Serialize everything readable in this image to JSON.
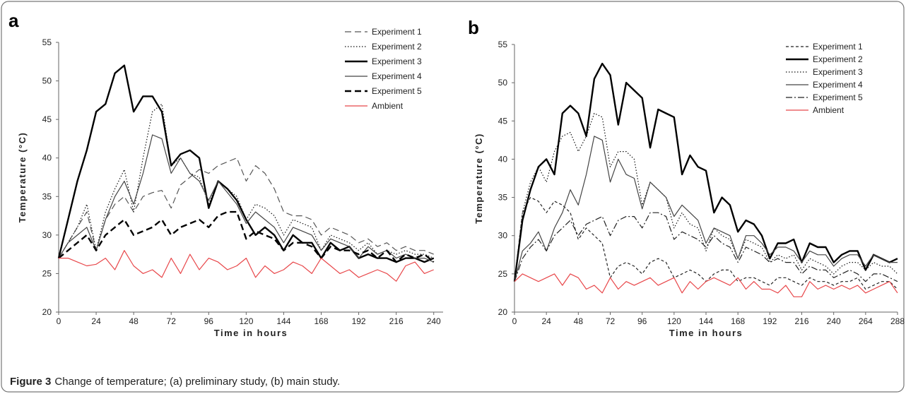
{
  "caption": {
    "label": "Figure 3",
    "text": "Change of temperature; (a) preliminary study, (b) main study."
  },
  "chart_data": [
    {
      "type": "line",
      "panel": "a",
      "xlabel": "Time in hours",
      "ylabel": "Temperature (°C)",
      "xlim": [
        0,
        246
      ],
      "ylim": [
        20,
        55
      ],
      "xticks": [
        0,
        24,
        48,
        72,
        96,
        120,
        144,
        168,
        192,
        216,
        240
      ],
      "yticks": [
        20,
        25,
        30,
        35,
        40,
        45,
        50,
        55
      ],
      "legend": "upper right",
      "x": [
        0,
        6,
        12,
        18,
        24,
        30,
        36,
        42,
        48,
        54,
        60,
        66,
        72,
        78,
        84,
        90,
        96,
        102,
        108,
        114,
        120,
        126,
        132,
        138,
        144,
        150,
        156,
        162,
        168,
        174,
        180,
        186,
        192,
        198,
        204,
        210,
        216,
        222,
        228,
        234,
        240
      ],
      "series": [
        {
          "name": "Experiment 1",
          "color": "#555555",
          "line_style": "dashed",
          "weight": "normal",
          "values": [
            27,
            29,
            31,
            33,
            28,
            32,
            34,
            35,
            33,
            35,
            35.5,
            35.8,
            33.5,
            36.5,
            37.5,
            38.5,
            38,
            39,
            39.5,
            40,
            37,
            39,
            38,
            36,
            33,
            32.5,
            32.5,
            32,
            30,
            31,
            30.5,
            30,
            29,
            29.5,
            28.5,
            29,
            28,
            28.5,
            28,
            28,
            27.5
          ]
        },
        {
          "name": "Experiment 2",
          "color": "#111111",
          "line_style": "dotted",
          "weight": "normal",
          "values": [
            27,
            29,
            31,
            34,
            28,
            33,
            36,
            38.5,
            33,
            40,
            46,
            47,
            39,
            40,
            38,
            37.5,
            34,
            37,
            36,
            35,
            32,
            34,
            33.5,
            32.5,
            30,
            32,
            31.5,
            31,
            28,
            30,
            29.5,
            29,
            28,
            29,
            27.5,
            28,
            27.5,
            28,
            27.5,
            27.5,
            27
          ]
        },
        {
          "name": "Experiment 3",
          "color": "#000000",
          "line_style": "solid",
          "weight": "bold",
          "values": [
            27,
            32,
            37,
            41,
            46,
            47,
            51,
            52,
            46,
            48,
            48,
            46,
            39,
            40.5,
            41,
            40,
            33.5,
            37,
            36,
            34.5,
            32,
            30,
            31,
            30,
            28,
            30,
            29,
            29,
            27,
            29,
            28,
            28.5,
            27,
            27.5,
            27,
            27,
            26.5,
            27,
            27,
            26.5,
            27
          ]
        },
        {
          "name": "Experiment 4",
          "color": "#444444",
          "line_style": "solid",
          "weight": "normal",
          "values": [
            27,
            29,
            30,
            31,
            28,
            32,
            35,
            37,
            34,
            38,
            43,
            42.5,
            38,
            40,
            38,
            37,
            34.5,
            37,
            35.5,
            34,
            31.5,
            33,
            32,
            31,
            29,
            31,
            30.5,
            30,
            28,
            29.5,
            29,
            28.5,
            27,
            28.5,
            27.5,
            28,
            27,
            27.5,
            27,
            27,
            26.5
          ]
        },
        {
          "name": "Experiment 5",
          "color": "#000000",
          "line_style": "dashed",
          "weight": "bold",
          "values": [
            27,
            28,
            29,
            30,
            28,
            30,
            31,
            32,
            30,
            30.5,
            31,
            32,
            30,
            31,
            31.5,
            32,
            31,
            32.5,
            33,
            33,
            29.5,
            30.5,
            30,
            29.5,
            28,
            29,
            29,
            28.5,
            27,
            28.5,
            28,
            28,
            27.5,
            28,
            27,
            28,
            26.5,
            27.5,
            27,
            27.5,
            26.5
          ]
        },
        {
          "name": "Ambient",
          "color": "#e8474a",
          "line_style": "solid",
          "weight": "normal",
          "values": [
            27,
            27,
            26.5,
            26,
            26.2,
            27,
            25.5,
            28,
            26,
            25,
            25.5,
            24.5,
            27,
            25,
            27.5,
            25.5,
            27,
            26.5,
            25.5,
            26,
            27,
            24.5,
            26,
            25,
            25.5,
            26.5,
            26,
            25,
            27,
            26,
            25,
            25.5,
            24.5,
            25,
            25.5,
            25,
            24,
            26,
            26.5,
            25,
            25.5
          ]
        }
      ]
    },
    {
      "type": "line",
      "panel": "b",
      "xlabel": "Time in hours",
      "ylabel": "Temperature (°C)",
      "xlim": [
        0,
        288
      ],
      "ylim": [
        20,
        55
      ],
      "xticks": [
        0,
        24,
        48,
        72,
        96,
        120,
        144,
        168,
        192,
        216,
        240,
        264,
        288
      ],
      "yticks": [
        20,
        25,
        30,
        35,
        40,
        45,
        50,
        55
      ],
      "legend": "upper right",
      "x": [
        0,
        6,
        12,
        18,
        24,
        30,
        36,
        42,
        48,
        54,
        60,
        66,
        72,
        78,
        84,
        90,
        96,
        102,
        108,
        114,
        120,
        126,
        132,
        138,
        144,
        150,
        156,
        162,
        168,
        174,
        180,
        186,
        192,
        198,
        204,
        210,
        216,
        222,
        228,
        234,
        240,
        246,
        252,
        258,
        264,
        270,
        276,
        282,
        288
      ],
      "series": [
        {
          "name": "Experiment 1",
          "color": "#222222",
          "line_style": "short-dashed",
          "weight": "normal",
          "values": [
            24,
            33,
            35,
            34.5,
            33,
            34.5,
            34,
            33,
            29.5,
            31,
            30,
            29,
            24.5,
            26,
            26.5,
            26,
            25,
            26.5,
            27,
            26.5,
            24.5,
            25,
            25.5,
            25,
            24,
            25,
            25.5,
            25.5,
            24,
            24.5,
            24.5,
            24,
            23.5,
            24.5,
            24.5,
            24,
            23.5,
            24.5,
            24,
            24,
            23.5,
            24,
            24,
            24.5,
            23,
            23.5,
            24,
            24,
            23
          ]
        },
        {
          "name": "Experiment 2",
          "color": "#000000",
          "line_style": "solid",
          "weight": "bold",
          "values": [
            24,
            32,
            36,
            39,
            40,
            38,
            46,
            47,
            46,
            43,
            50.5,
            52.5,
            51,
            44.5,
            50,
            49,
            48,
            41.5,
            46.5,
            46,
            45.5,
            38,
            40.5,
            39,
            38.5,
            33,
            35,
            34,
            30.5,
            32,
            31.5,
            30,
            27,
            29,
            29,
            29.5,
            26.5,
            29,
            28.5,
            28.5,
            26.5,
            27.5,
            28,
            28,
            25.5,
            27.5,
            27,
            26.5,
            27
          ]
        },
        {
          "name": "Experiment 3",
          "color": "#111111",
          "line_style": "dotted",
          "weight": "normal",
          "values": [
            24,
            33,
            37,
            39,
            37,
            41,
            43,
            43.5,
            41,
            43,
            46,
            45.5,
            39,
            41,
            41,
            40,
            34,
            37,
            36,
            35,
            31,
            33,
            31.5,
            31,
            28,
            31,
            30,
            29.5,
            27,
            29.5,
            29,
            28.5,
            26.5,
            27.5,
            27,
            27.5,
            25.5,
            27,
            26.5,
            26,
            25,
            26,
            26.5,
            26.5,
            25.5,
            26.5,
            26,
            26,
            25
          ]
        },
        {
          "name": "Experiment 4",
          "color": "#444444",
          "line_style": "solid",
          "weight": "normal",
          "values": [
            24,
            28,
            29,
            30.5,
            28,
            31,
            33,
            36,
            34,
            38,
            43,
            42.5,
            37,
            40,
            38,
            37.5,
            33.5,
            37,
            36,
            35,
            32.5,
            34,
            33,
            32,
            29,
            31,
            30.5,
            30,
            27,
            30,
            30,
            29,
            27.5,
            28.5,
            28.5,
            28,
            26.5,
            28,
            27.5,
            27.5,
            26,
            27,
            27.5,
            27.5,
            26,
            27.5,
            27,
            26.5,
            26.5
          ]
        },
        {
          "name": "Experiment 5",
          "color": "#222222",
          "line_style": "dash-dot",
          "weight": "normal",
          "values": [
            24,
            27,
            28.5,
            29.5,
            28,
            30,
            31,
            32,
            30,
            31.5,
            32,
            32.5,
            30,
            32,
            32.5,
            32.5,
            31,
            33,
            33,
            32.5,
            29.5,
            30.5,
            30,
            29.5,
            28.5,
            30,
            29,
            28.5,
            26.5,
            28.5,
            28,
            27.5,
            26.5,
            27,
            26.5,
            26.5,
            25,
            26,
            25.5,
            25.5,
            24.5,
            25,
            25.5,
            25,
            24,
            25,
            25,
            24.5,
            24
          ]
        },
        {
          "name": "Ambient",
          "color": "#e8474a",
          "line_style": "solid",
          "weight": "normal",
          "values": [
            24,
            25,
            24.5,
            24,
            24.5,
            25,
            23.5,
            25,
            24.5,
            23,
            23.5,
            22.5,
            24.5,
            23,
            24,
            23.5,
            24,
            24.5,
            23.5,
            24,
            24.5,
            22.5,
            24,
            23,
            24,
            24.5,
            24,
            23.5,
            24.5,
            23,
            24,
            23,
            23,
            22.5,
            23.5,
            22,
            22,
            24,
            23,
            23.5,
            23,
            23.5,
            23,
            23.5,
            22.5,
            23,
            23.5,
            24,
            22.5
          ]
        }
      ]
    }
  ]
}
